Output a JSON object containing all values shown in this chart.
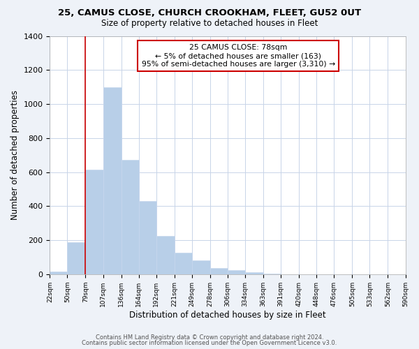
{
  "title": "25, CAMUS CLOSE, CHURCH CROOKHAM, FLEET, GU52 0UT",
  "subtitle": "Size of property relative to detached houses in Fleet",
  "xlabel": "Distribution of detached houses by size in Fleet",
  "ylabel": "Number of detached properties",
  "bar_edges": [
    22,
    50,
    79,
    107,
    136,
    164,
    192,
    221,
    249,
    278,
    306,
    334,
    363,
    391,
    420,
    448,
    476,
    505,
    533,
    562,
    590
  ],
  "bar_heights": [
    15,
    190,
    615,
    1100,
    670,
    430,
    225,
    125,
    80,
    35,
    25,
    10,
    5,
    0,
    0,
    0,
    0,
    0,
    0,
    0
  ],
  "bar_color": "#b8cfe8",
  "bar_edge_color": "#c8d8ee",
  "vline_x": 79,
  "vline_color": "#cc0000",
  "annotation_title": "25 CAMUS CLOSE: 78sqm",
  "annotation_line1": "← 5% of detached houses are smaller (163)",
  "annotation_line2": "95% of semi-detached houses are larger (3,310) →",
  "annotation_box_color": "#cc0000",
  "ylim": [
    0,
    1400
  ],
  "yticks": [
    0,
    200,
    400,
    600,
    800,
    1000,
    1200,
    1400
  ],
  "xtick_labels": [
    "22sqm",
    "50sqm",
    "79sqm",
    "107sqm",
    "136sqm",
    "164sqm",
    "192sqm",
    "221sqm",
    "249sqm",
    "278sqm",
    "306sqm",
    "334sqm",
    "363sqm",
    "391sqm",
    "420sqm",
    "448sqm",
    "476sqm",
    "505sqm",
    "533sqm",
    "562sqm",
    "590sqm"
  ],
  "footer1": "Contains HM Land Registry data © Crown copyright and database right 2024.",
  "footer2": "Contains public sector information licensed under the Open Government Licence v3.0.",
  "background_color": "#eef2f8",
  "plot_background_color": "#ffffff",
  "grid_color": "#c8d4e8"
}
